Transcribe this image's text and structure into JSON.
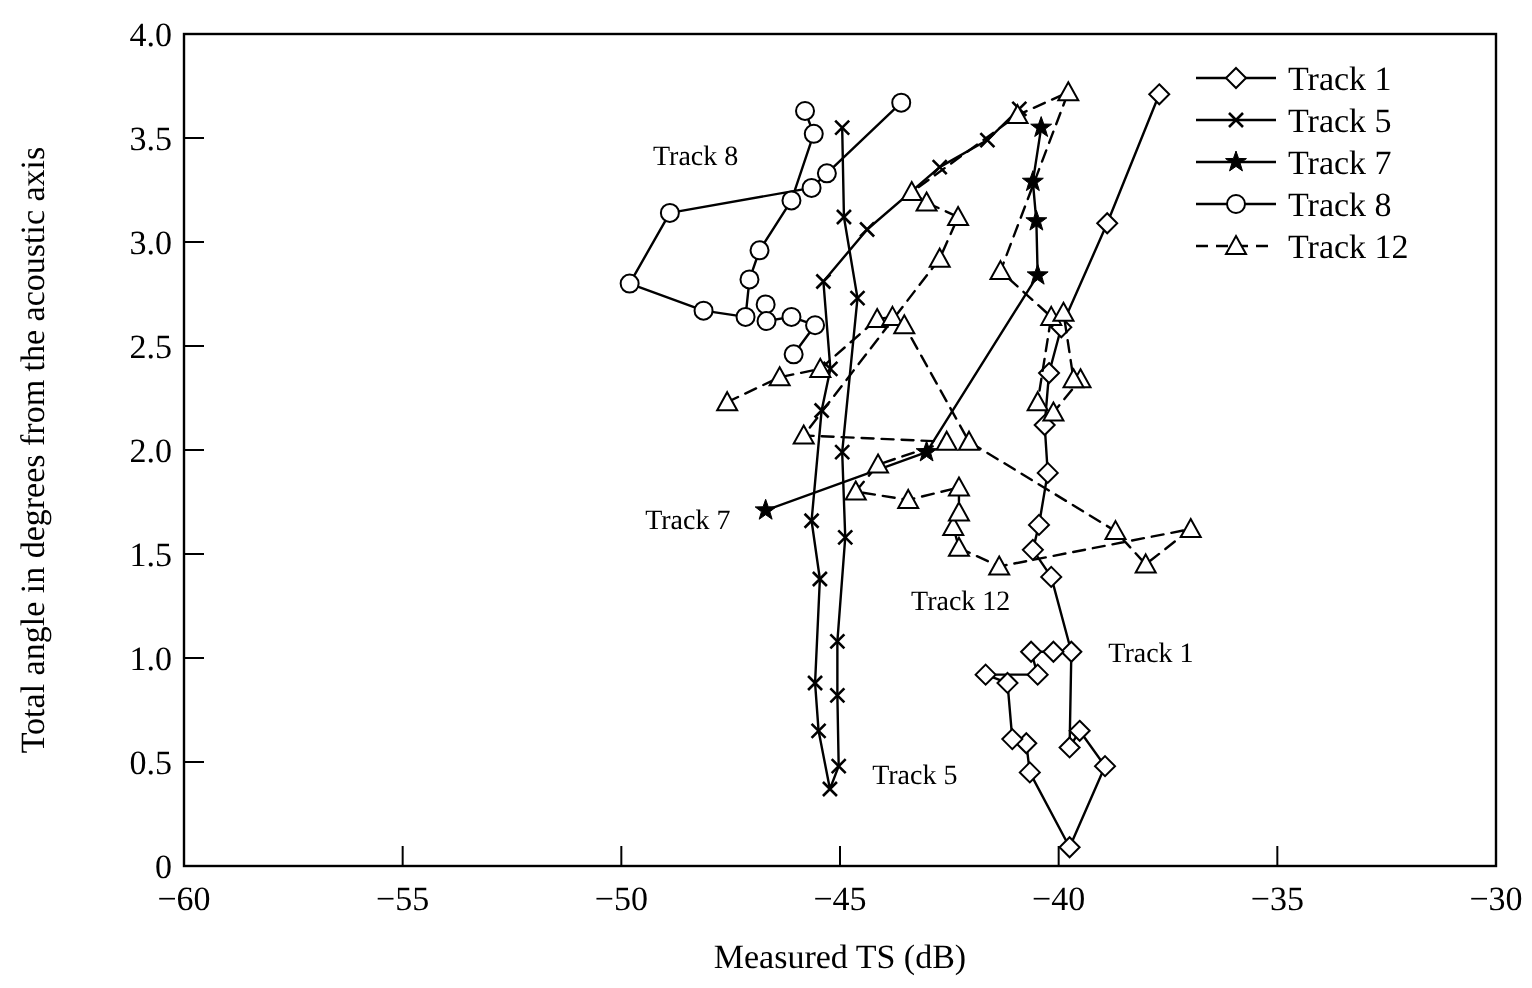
{
  "chart_data": {
    "type": "line",
    "xlabel": "Measured TS (dB)",
    "ylabel": "Total angle in degrees from the acoustic axis",
    "xlim": [
      -60,
      -30
    ],
    "ylim": [
      0,
      4
    ],
    "xticks": [
      {
        "value": -60,
        "label": "−60"
      },
      {
        "value": -55,
        "label": "−55"
      },
      {
        "value": -50,
        "label": "−50"
      },
      {
        "value": -45,
        "label": "−45"
      },
      {
        "value": -40,
        "label": "−40"
      },
      {
        "value": -35,
        "label": "−35"
      },
      {
        "value": -30,
        "label": "−30"
      }
    ],
    "yticks": [
      0,
      {
        "value": 0.5,
        "label": "0.5"
      },
      {
        "value": 1,
        "label": "1.0"
      },
      {
        "value": 1.5,
        "label": "1.5"
      },
      {
        "value": 2,
        "label": "2.0"
      },
      {
        "value": 2.5,
        "label": "2.5"
      },
      {
        "value": 3,
        "label": "3.0"
      },
      {
        "value": 3.5,
        "label": "3.5"
      },
      {
        "value": 4,
        "label": "4.0"
      }
    ],
    "grid": false,
    "legend": "top right",
    "series": [
      {
        "name": "Track 1",
        "color": "#000000",
        "marker": "diamond",
        "line_style": "solid",
        "x": [
          -37.7,
          -38.89,
          -39.94,
          -40.22,
          -40.32,
          -40.25,
          -40.45,
          -40.59,
          -40.17,
          -39.71,
          -39.75,
          -39.52,
          -38.94,
          -39.75,
          -40.66,
          -40.74,
          -41.06,
          -41.17,
          -41.67,
          -40.48,
          -40.63,
          -40.12
        ],
        "values": [
          3.71,
          3.09,
          2.59,
          2.37,
          2.12,
          1.89,
          1.64,
          1.52,
          1.39,
          1.03,
          0.57,
          0.65,
          0.48,
          0.09,
          0.45,
          0.59,
          0.61,
          0.88,
          0.92,
          0.92,
          1.03,
          1.03
        ]
      },
      {
        "name": "Track 5",
        "color": "#000000",
        "marker": "cross",
        "line_style": "solid",
        "x": [
          -44.95,
          -44.91,
          -44.6,
          -44.95,
          -44.88,
          -45.06,
          -45.06,
          -45.03,
          -45.23,
          -45.49,
          -45.57,
          -45.46,
          -45.65,
          -45.42,
          -45.22,
          -45.38,
          -44.38,
          -42.72,
          -41.63,
          -40.9
        ],
        "values": [
          3.55,
          3.12,
          2.73,
          1.99,
          1.58,
          1.08,
          0.82,
          0.48,
          0.37,
          0.65,
          0.88,
          1.38,
          1.66,
          2.19,
          2.39,
          2.81,
          3.06,
          3.36,
          3.49,
          3.64
        ]
      },
      {
        "name": "Track 7",
        "color": "#000000",
        "marker": "star",
        "line_style": "solid",
        "x": [
          -46.7,
          -43.02,
          -40.48,
          -40.51,
          -40.59,
          -40.4
        ],
        "values": [
          1.71,
          1.99,
          2.84,
          3.1,
          3.29,
          3.55
        ]
      },
      {
        "name": "Track 8",
        "color": "#000000",
        "marker": "circle",
        "line_style": "solid",
        "x": [
          -45.8,
          -45.6,
          -46.11,
          -46.84,
          -47.07,
          -47.16,
          -48.12,
          -49.81,
          -48.89,
          -45.65,
          -45.3,
          -43.6,
          -45.0,
          -46.7,
          -46.68,
          -46.11,
          -45.57,
          -46.06
        ],
        "values": [
          3.63,
          3.52,
          3.2,
          2.96,
          2.82,
          2.64,
          2.67,
          2.8,
          3.14,
          3.26,
          3.33,
          3.67,
          null,
          2.7,
          2.62,
          2.64,
          2.6,
          2.46
        ]
      },
      {
        "name": "Track 12",
        "color": "#000000",
        "marker": "triangle",
        "line_style": "dashed",
        "x": [
          -47.58,
          -46.38,
          -45.45,
          -44.15,
          -43.8,
          -43.53,
          -42.05,
          -38.7,
          -38.01,
          -36.98,
          -41.36,
          -42.28,
          -42.41,
          -42.28,
          -42.28,
          -43.44,
          -44.64,
          -44.13,
          -42.56,
          -45.83,
          -42.72,
          -42.3,
          -43.02,
          -43.36,
          -40.94,
          -39.78,
          -41.33,
          -40.17,
          -40.48,
          -40.12,
          -39.5,
          -39.66,
          -39.89
        ],
        "values": [
          2.23,
          2.35,
          2.39,
          2.63,
          2.64,
          2.6,
          2.04,
          1.61,
          1.45,
          1.62,
          1.44,
          1.53,
          1.63,
          1.7,
          1.82,
          1.76,
          1.8,
          1.93,
          2.04,
          2.07,
          2.92,
          3.12,
          3.19,
          3.24,
          3.61,
          3.72,
          2.86,
          2.64,
          2.23,
          2.18,
          2.34,
          2.34,
          2.66
        ]
      }
    ],
    "annotations": [
      "Track 8",
      "Track 7",
      "Track 12",
      "Track 1",
      "Track 5"
    ]
  }
}
